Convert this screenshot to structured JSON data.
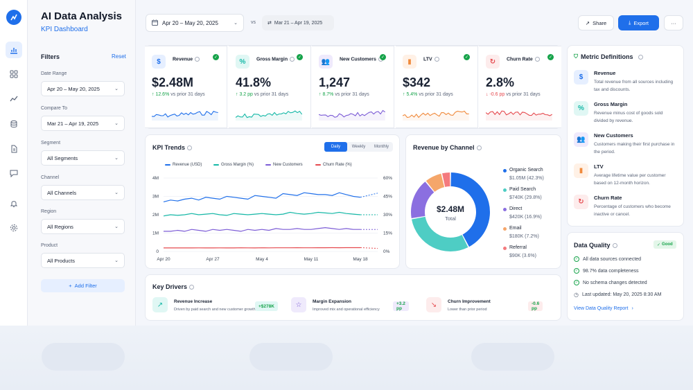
{
  "app": {
    "title": "AI Data Analysis",
    "subtitle": "KPI Dashboard",
    "logo": "chart-logo-icon"
  },
  "rail": [
    "chart-icon",
    "grid-icon",
    "trend-icon",
    "database-icon",
    "document-icon",
    "chat-icon",
    "bell-icon",
    "gear-icon"
  ],
  "header": {
    "date_range": "Apr 20 – May 20, 2025",
    "vs": "vs",
    "compare_range": "Mar 21 – Apr 19, 2025",
    "share": "Share",
    "export": "Export",
    "more": "···"
  },
  "filters": {
    "title": "Filters",
    "reset": "Reset",
    "items": [
      {
        "label": "Date Range",
        "value": "Apr 20 – May 20, 2025"
      },
      {
        "label": "Compare To",
        "value": "Mar 21 – Apr 19, 2025"
      },
      {
        "label": "Segment",
        "value": "All Segments"
      },
      {
        "label": "Channel",
        "value": "All Channels"
      },
      {
        "label": "Region",
        "value": "All Regions"
      },
      {
        "label": "Product",
        "value": "All Products"
      }
    ],
    "add_filter": "Add Filter"
  },
  "kpis": [
    {
      "name": "Revenue",
      "value": "$2.48M",
      "delta": "↑ 12.6%",
      "rest": "vs prior 31 days",
      "color": "#1f6fea",
      "bg": "#e6efff",
      "glyph": "$",
      "trend": "up"
    },
    {
      "name": "Gross Margin",
      "value": "41.8%",
      "delta": "↑ 3.2 pp",
      "rest": "vs prior 31 days",
      "color": "#14b8a6",
      "bg": "#e0f7f4",
      "glyph": "%",
      "trend": "up"
    },
    {
      "name": "New Customers",
      "value": "1,247",
      "delta": "↑ 8.7%",
      "rest": "vs prior 31 days",
      "color": "#7c5cd6",
      "bg": "#efeafc",
      "glyph": "👥",
      "trend": "up"
    },
    {
      "name": "LTV",
      "value": "$342",
      "delta": "↑ 5.4%",
      "rest": "vs prior 31 days",
      "color": "#f08a3c",
      "bg": "#fff1e6",
      "glyph": "▮",
      "trend": "up"
    },
    {
      "name": "Churn Rate",
      "value": "2.8%",
      "delta": "↓ -0.6 pp",
      "rest": "vs prior 31 days",
      "color": "#e5484d",
      "bg": "#fdecec",
      "glyph": "↻",
      "trend": "down"
    }
  ],
  "kpi_trends": {
    "title": "KPI Trends",
    "toggle": [
      "Daily",
      "Weekly",
      "Monthly"
    ],
    "active": "Daily",
    "legend": [
      {
        "name": "Revenue (USD)",
        "color": "#1f6fea"
      },
      {
        "name": "Gross Margin (%)",
        "color": "#14b8a6"
      },
      {
        "name": "New Customers",
        "color": "#7c5cd6"
      },
      {
        "name": "Churn Rate (%)",
        "color": "#e5484d"
      }
    ],
    "y_left": [
      "4M",
      "3M",
      "2M",
      "1M",
      "0"
    ],
    "y_right": [
      "60%",
      "45%",
      "30%",
      "15%",
      "0%"
    ],
    "x_ticks": [
      "Apr 20",
      "Apr 27",
      "May 4",
      "May 11",
      "May 18"
    ]
  },
  "chart_data": {
    "type": "line",
    "x": [
      "Apr 20",
      "Apr 21",
      "Apr 22",
      "Apr 23",
      "Apr 24",
      "Apr 25",
      "Apr 26",
      "Apr 27",
      "Apr 28",
      "Apr 29",
      "Apr 30",
      "May 1",
      "May 2",
      "May 3",
      "May 4",
      "May 5",
      "May 6",
      "May 7",
      "May 8",
      "May 9",
      "May 10",
      "May 11",
      "May 12",
      "May 13",
      "May 14",
      "May 15",
      "May 16",
      "May 17",
      "May 18"
    ],
    "series": [
      {
        "name": "Revenue (USD)",
        "axis": "left",
        "values": [
          2.7,
          2.8,
          2.75,
          2.85,
          2.9,
          2.8,
          2.95,
          2.9,
          2.85,
          3.0,
          2.95,
          2.9,
          2.85,
          3.05,
          3.0,
          2.95,
          2.9,
          3.15,
          3.1,
          3.05,
          3.2,
          3.15,
          3.1,
          3.1,
          3.05,
          3.2,
          3.1,
          3.0,
          2.95
        ]
      },
      {
        "name": "Gross Margin (%)",
        "axis": "right",
        "values": [
          29,
          30,
          29.5,
          30,
          31,
          30,
          30.5,
          31,
          30,
          29.5,
          31,
          30.5,
          30,
          30.5,
          31,
          30.5,
          30,
          30.5,
          32,
          31,
          30.5,
          31,
          32,
          31.5,
          31,
          32,
          31,
          30.5,
          30
        ]
      },
      {
        "name": "New Customers",
        "axis": "left",
        "values": [
          1.1,
          1.1,
          1.15,
          1.1,
          1.2,
          1.15,
          1.1,
          1.2,
          1.15,
          1.2,
          1.15,
          1.1,
          1.2,
          1.15,
          1.2,
          1.15,
          1.25,
          1.2,
          1.2,
          1.25,
          1.2,
          1.2,
          1.25,
          1.3,
          1.25,
          1.2,
          1.25,
          1.2,
          1.2
        ]
      },
      {
        "name": "Churn Rate (%)",
        "axis": "right",
        "values": [
          2.9,
          2.9,
          2.9,
          2.9,
          2.9,
          2.95,
          2.9,
          2.9,
          2.95,
          2.9,
          2.9,
          3.0,
          2.95,
          2.9,
          3.0,
          2.95,
          3.0,
          3.0,
          3.0,
          3.05,
          3.0,
          3.0,
          3.05,
          3.05,
          3.1,
          3.05,
          3.1,
          3.1,
          3.1
        ]
      }
    ],
    "ylim_left": [
      0,
      4
    ],
    "ylim_right": [
      0,
      60
    ],
    "grid": true,
    "legend": "top"
  },
  "revenue_by_channel": {
    "title": "Revenue by Channel",
    "center_value": "$2.48M",
    "center_label": "Total",
    "type": "pie",
    "slices": [
      {
        "name": "Organic Search",
        "detail": "$1.05M (42.3%)",
        "value": 42.3,
        "color": "#1f6fea"
      },
      {
        "name": "Paid Search",
        "detail": "$740K (29.8%)",
        "value": 29.8,
        "color": "#4ecdc4"
      },
      {
        "name": "Direct",
        "detail": "$420K (16.9%)",
        "value": 16.9,
        "color": "#8b6fe0"
      },
      {
        "name": "Email",
        "detail": "$180K (7.2%)",
        "value": 7.2,
        "color": "#f5a66a"
      },
      {
        "name": "Referral",
        "detail": "$90K (3.6%)",
        "value": 3.6,
        "color": "#f47a7e"
      }
    ]
  },
  "metric_definitions": {
    "title": "Metric Definitions",
    "items": [
      {
        "name": "Revenue",
        "desc": "Total revenue from all sources including tax and discounts.",
        "color": "#1f6fea",
        "bg": "#e6efff",
        "glyph": "$"
      },
      {
        "name": "Gross Margin",
        "desc": "Revenue minus cost of goods sold divided by revenue.",
        "color": "#14b8a6",
        "bg": "#e0f7f4",
        "glyph": "%"
      },
      {
        "name": "New Customers",
        "desc": "Customers making their first purchase in the period.",
        "color": "#7c5cd6",
        "bg": "#efeafc",
        "glyph": "👥"
      },
      {
        "name": "LTV",
        "desc": "Average lifetime value per customer based on 12-month horizon.",
        "color": "#f08a3c",
        "bg": "#fff1e6",
        "glyph": "▮"
      },
      {
        "name": "Churn Rate",
        "desc": "Percentage of customers who become inactive or cancel.",
        "color": "#e5484d",
        "bg": "#fdecec",
        "glyph": "↻"
      }
    ]
  },
  "data_quality": {
    "title": "Data Quality",
    "badge": "Good",
    "checks": [
      "All data sources connected",
      "98.7% data completeness",
      "No schema changes detected"
    ],
    "updated": "Last updated: May 20, 2025 8:30 AM",
    "link": "View Data Quality Report"
  },
  "key_drivers": {
    "title": "Key Drivers",
    "items": [
      {
        "name": "Revenue Increase",
        "desc": "Driven by paid search and new customer growth",
        "badge": "+$278K",
        "color": "#14b8a6",
        "bg": "#e0f7f4",
        "glyph": "↗"
      },
      {
        "name": "Margin Expansion",
        "desc": "Improved mix and operational efficiency",
        "badge": "+3.2 pp",
        "color": "#7c5cd6",
        "bg": "#efeafc",
        "glyph": "☆"
      },
      {
        "name": "Churn Improvement",
        "desc": "Lower than prior period",
        "badge": "-0.6 pp",
        "color": "#e5484d",
        "bg": "#fdecec",
        "glyph": "↘"
      }
    ]
  }
}
